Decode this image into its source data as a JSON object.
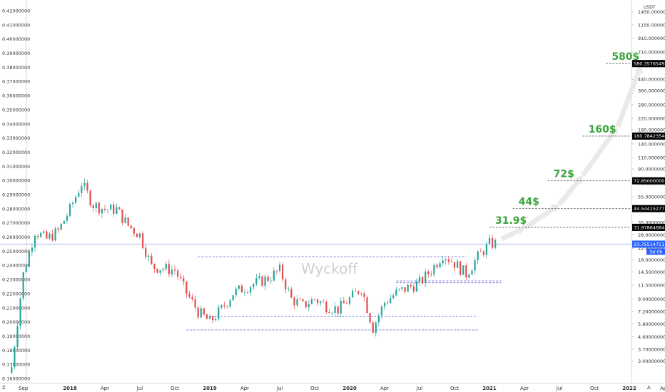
{
  "chart_data": {
    "type": "candlestick",
    "left_axis": {
      "ticks": [
        "0.42000000",
        "0.41000000",
        "0.40000000",
        "0.39000000",
        "0.38000000",
        "0.37000000",
        "0.36000000",
        "0.35000000",
        "0.34000000",
        "0.33000000",
        "0.32000000",
        "0.31000000",
        "0.30000000",
        "0.29000000",
        "0.28000000",
        "0.27000000",
        "0.26000000",
        "0.25000000",
        "0.24000000",
        "0.23000000",
        "0.22000000",
        "0.21000000",
        "0.20000000",
        "0.19000000",
        "0.18000000",
        "0.17000000",
        "0.16000000"
      ],
      "ylim": [
        0.16,
        0.42
      ]
    },
    "right_axis": {
      "unit": "USDT",
      "scale": "log",
      "ticks": [
        "1450.00000000",
        "1150.00000000",
        "910.00000000",
        "710.00000000",
        "560.00000000",
        "440.00000000",
        "360.00000000",
        "280.00000000",
        "220.00000000",
        "180.00000000",
        "140.00000000",
        "110.00000000",
        "90.00000000",
        "70.00000000",
        "55.00000000",
        "45.00000000",
        "35.00000000",
        "28.00000000",
        "22.00000000",
        "18.00000000",
        "14.50000000",
        "11.50000000",
        "9.00000000",
        "7.20000000",
        "5.80000000",
        "4.60000000",
        "3.70000000",
        "3.00000000"
      ],
      "ylim": [
        2.5,
        1700
      ]
    },
    "x_axis": {
      "ticks": [
        "Sep",
        "2018",
        "Apr",
        "Jul",
        "Oct",
        "2019",
        "Apr",
        "Jul",
        "Oct",
        "2020",
        "Apr",
        "Jul",
        "Oct",
        "2021",
        "Apr",
        "Jul",
        "Oct",
        "2022",
        "Apr"
      ],
      "start": "2017-07",
      "end": "2022-07"
    },
    "price_series_monthly": {
      "months": [
        "2017-08",
        "2017-09",
        "2017-10",
        "2017-11",
        "2017-12",
        "2018-01",
        "2018-02",
        "2018-03",
        "2018-04",
        "2018-05",
        "2018-06",
        "2018-07",
        "2018-08",
        "2018-09",
        "2018-10",
        "2018-11",
        "2018-12",
        "2019-01",
        "2019-02",
        "2019-03",
        "2019-04",
        "2019-05",
        "2019-06",
        "2019-07",
        "2019-08",
        "2019-09",
        "2019-10",
        "2019-11",
        "2019-12",
        "2020-01",
        "2020-02",
        "2020-03",
        "2020-04",
        "2020-05",
        "2020-06",
        "2020-07",
        "2020-08",
        "2020-09",
        "2020-10",
        "2020-11",
        "2020-12",
        "2021-01"
      ],
      "values": [
        2.7,
        14,
        30,
        26,
        30,
        44,
        70,
        48,
        44,
        44,
        33,
        28,
        16,
        15.5,
        15,
        10,
        7.2,
        6.0,
        7.5,
        10,
        11,
        12,
        13,
        15,
        9,
        8,
        9,
        8,
        7.5,
        9,
        11,
        5.4,
        8.5,
        10,
        11,
        12,
        15,
        20,
        17,
        14,
        19,
        24
      ]
    },
    "current_price": "23.75514751",
    "countdown": "3d 0h",
    "levels": [
      {
        "label": "31.9$",
        "value": 31.97864684,
        "value_text": "31.97864684",
        "badge": "#000000"
      },
      {
        "label": "44$",
        "value": 44.54415277,
        "value_text": "44.54415277",
        "badge": "#000000"
      },
      {
        "label": "72$",
        "value": 72.85,
        "value_text": "72.85000000",
        "badge": "#000000"
      },
      {
        "label": "160$",
        "value": 160.78423546,
        "value_text": "160.78423546",
        "badge": "#000000"
      },
      {
        "label": "580$",
        "value": 580.35765492,
        "value_text": "580.35765492",
        "badge": "#000000"
      }
    ],
    "support_lines": [
      {
        "value": 19.0,
        "from": "2018-12",
        "to": "2020-11"
      },
      {
        "value": 12.4,
        "from": "2020-05",
        "to": "2021-02"
      },
      {
        "value": 12.0,
        "from": "2020-05",
        "to": "2021-02"
      },
      {
        "value": 6.6,
        "from": "2019-01",
        "to": "2020-12"
      },
      {
        "value": 5.2,
        "from": "2018-11",
        "to": "2020-12"
      }
    ],
    "watermark": "Wyckoff",
    "colors": {
      "up": "#26a69a",
      "down": "#e84a4a",
      "level": "#555555",
      "support": "#6b6bd6",
      "target": "#3aa43a",
      "price_line": "#9ea9de",
      "price_badge": "#2962ff"
    }
  },
  "footer": {
    "left_glyph": "Z",
    "right_glyph": "A"
  }
}
